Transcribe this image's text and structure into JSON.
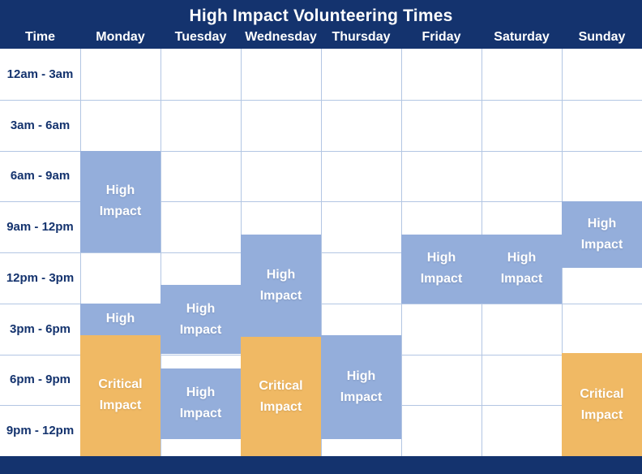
{
  "title": "High Impact Volunteering Times",
  "header": {
    "time_column_label": "Time",
    "days": [
      "Monday",
      "Tuesday",
      "Wednesday",
      "Thursday",
      "Friday",
      "Saturday",
      "Sunday"
    ]
  },
  "time_slots": [
    "12am - 3am",
    "3am - 6am",
    "6am - 9am",
    "9am - 12pm",
    "12pm - 3pm",
    "3pm - 6pm",
    "6pm - 9pm",
    "9pm - 12pm"
  ],
  "colors": {
    "navy_banner": "#14336e",
    "high_block": "#94aedb",
    "critical_block": "#f0b964",
    "grid_line": "#b3c6e3",
    "time_label_text": "#14336e",
    "header_text": "#ffffff",
    "block_text": "#ffffff"
  },
  "chart_data": {
    "type": "heatmap",
    "title": "High Impact Volunteering Times",
    "x_categories": [
      "Monday",
      "Tuesday",
      "Wednesday",
      "Thursday",
      "Friday",
      "Saturday",
      "Sunday"
    ],
    "y_categories": [
      "12am - 3am",
      "3am - 6am",
      "6am - 9am",
      "9am - 12pm",
      "12pm - 3pm",
      "3pm - 6pm",
      "6pm - 9pm",
      "9pm - 12pm"
    ],
    "y_axis_note": "each row spans 3 hours; row_start/row_end are fractional row indices from 0 (12am) to 8 (12am next day)",
    "levels": {
      "high": {
        "label": "High Impact",
        "color": "#94aedb"
      },
      "critical": {
        "label": "Critical Impact",
        "color": "#f0b964"
      }
    },
    "blocks": [
      {
        "day": "Monday",
        "label": "High Impact",
        "level": "high",
        "row_start": 2.0,
        "row_end": 4.0,
        "approx_time": "6am - 12pm"
      },
      {
        "day": "Monday",
        "label": "High",
        "level": "high",
        "row_start": 5.0,
        "row_end": 5.62,
        "approx_time": "3pm - 5pm"
      },
      {
        "day": "Monday",
        "label": "Critical Impact",
        "level": "critical",
        "row_start": 5.62,
        "row_end": 8.0,
        "approx_time": "5pm - 12am"
      },
      {
        "day": "Tuesday",
        "label": "High Impact",
        "level": "high",
        "row_start": 4.64,
        "row_end": 6.0,
        "approx_time": "2pm - 6pm"
      },
      {
        "day": "Tuesday",
        "label": "High Impact",
        "level": "high",
        "row_start": 6.28,
        "row_end": 7.66,
        "approx_time": "7pm - 11pm"
      },
      {
        "day": "Wednesday",
        "label": "High Impact",
        "level": "high",
        "row_start": 3.65,
        "row_end": 5.66,
        "approx_time": "11am - 5pm"
      },
      {
        "day": "Wednesday",
        "label": "Critical Impact",
        "level": "critical",
        "row_start": 5.66,
        "row_end": 8.0,
        "approx_time": "5pm - 12am"
      },
      {
        "day": "Thursday",
        "label": "High Impact",
        "level": "high",
        "row_start": 5.62,
        "row_end": 7.66,
        "approx_time": "5pm - 11pm"
      },
      {
        "day": "Friday",
        "label": "High Impact",
        "level": "high",
        "row_start": 3.65,
        "row_end": 5.0,
        "approx_time": "11am - 3pm"
      },
      {
        "day": "Saturday",
        "label": "High Impact",
        "level": "high",
        "row_start": 3.65,
        "row_end": 5.0,
        "approx_time": "11am - 3pm"
      },
      {
        "day": "Sunday",
        "label": "High Impact",
        "level": "high",
        "row_start": 3.0,
        "row_end": 4.3,
        "approx_time": "9am - 1pm"
      },
      {
        "day": "Sunday",
        "label": "Critical Impact",
        "level": "critical",
        "row_start": 5.98,
        "row_end": 8.0,
        "approx_time": "6pm - 12am"
      }
    ]
  }
}
